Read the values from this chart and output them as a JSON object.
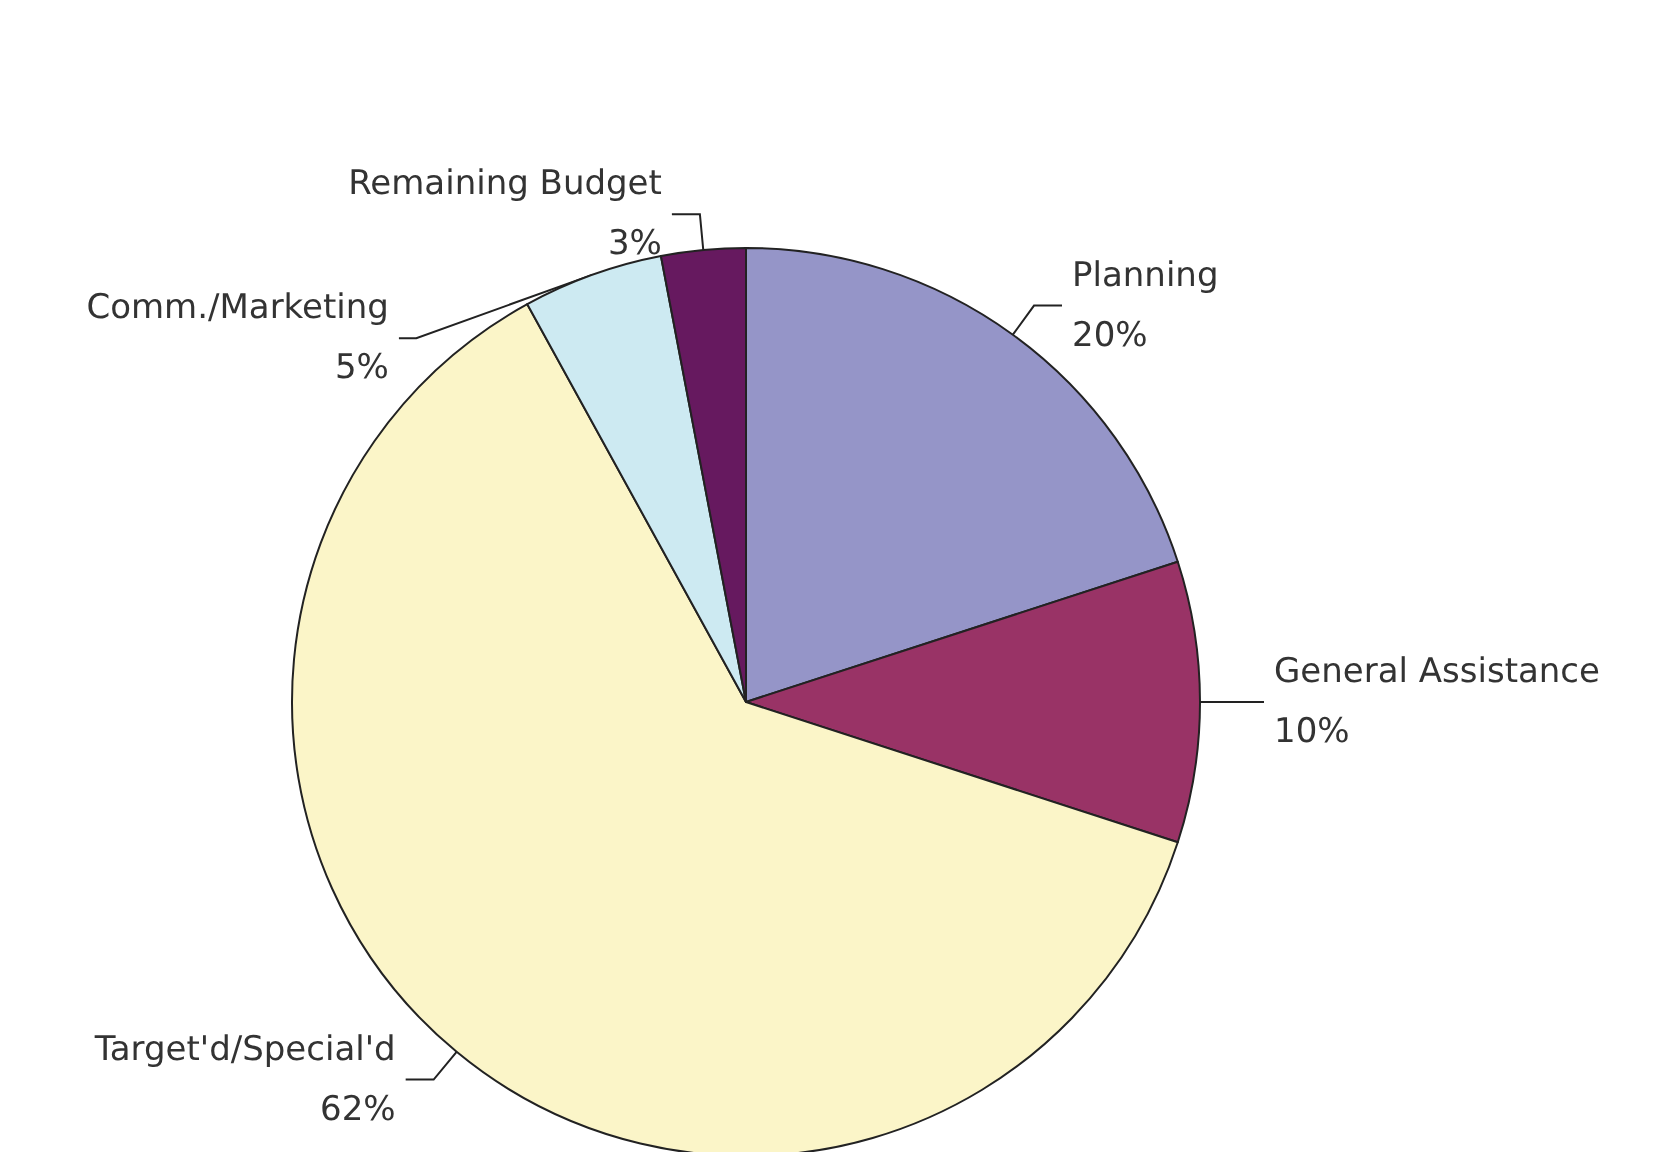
{
  "chart_data": {
    "type": "pie",
    "categories": [
      "Planning",
      "General Assistance",
      "Target'd/Special'd",
      "Comm./Marketing",
      "Remaining Budget"
    ],
    "values": [
      20,
      10,
      62,
      5,
      3
    ],
    "colors": [
      "#9595c8",
      "#993366",
      "#fbf5c8",
      "#cdeaf2",
      "#66195f"
    ],
    "value_labels": [
      "20%",
      "10%",
      "62%",
      "5%",
      "3%"
    ],
    "legend": false
  }
}
